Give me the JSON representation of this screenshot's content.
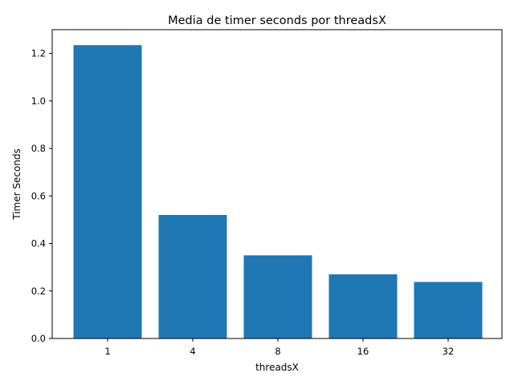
{
  "chart_data": {
    "type": "bar",
    "title": "Media de timer seconds por threadsX",
    "xlabel": "threadsX",
    "ylabel": "Timer Seconds",
    "categories": [
      "1",
      "4",
      "8",
      "16",
      "32"
    ],
    "values": [
      1.235,
      0.52,
      0.35,
      0.27,
      0.238
    ],
    "ylim": [
      0,
      1.3
    ],
    "yticks": [
      0.0,
      0.2,
      0.4,
      0.6,
      0.8,
      1.0,
      1.2
    ],
    "ytick_labels": [
      "0.0",
      "0.2",
      "0.4",
      "0.6",
      "0.8",
      "1.0",
      "1.2"
    ],
    "bar_color": "#1f77b4",
    "grid": false,
    "legend": "none"
  }
}
